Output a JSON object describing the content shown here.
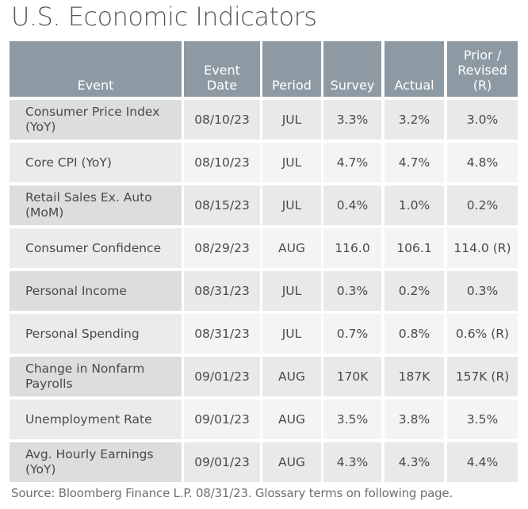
{
  "title": "U.S. Economic Indicators",
  "table": {
    "headers": [
      "Event",
      "Event\nDate",
      "Period",
      "Survey",
      "Actual",
      "Prior /\nRevised\n(R)"
    ],
    "rows": [
      {
        "event": "Consumer Price Index (YoY)",
        "date": "08/10/23",
        "period": "JUL",
        "survey": "3.3%",
        "actual": "3.2%",
        "prior": "3.0%"
      },
      {
        "event": "Core CPI (YoY)",
        "date": "08/10/23",
        "period": "JUL",
        "survey": "4.7%",
        "actual": "4.7%",
        "prior": "4.8%"
      },
      {
        "event": "Retail Sales Ex. Auto (MoM)",
        "date": "08/15/23",
        "period": "JUL",
        "survey": "0.4%",
        "actual": "1.0%",
        "prior": "0.2%"
      },
      {
        "event": "Consumer Confidence",
        "date": "08/29/23",
        "period": "AUG",
        "survey": "116.0",
        "actual": "106.1",
        "prior": "114.0 (R)"
      },
      {
        "event": "Personal Income",
        "date": "08/31/23",
        "period": "JUL",
        "survey": "0.3%",
        "actual": "0.2%",
        "prior": "0.3%"
      },
      {
        "event": "Personal Spending",
        "date": "08/31/23",
        "period": "JUL",
        "survey": "0.7%",
        "actual": "0.8%",
        "prior": "0.6% (R)"
      },
      {
        "event": "Change in Nonfarm Payrolls",
        "date": "09/01/23",
        "period": "AUG",
        "survey": "170K",
        "actual": "187K",
        "prior": "157K (R)"
      },
      {
        "event": "Unemployment Rate",
        "date": "09/01/23",
        "period": "AUG",
        "survey": "3.5%",
        "actual": "3.8%",
        "prior": "3.5%"
      },
      {
        "event": "Avg. Hourly Earnings (YoY)",
        "date": "09/01/23",
        "period": "AUG",
        "survey": "4.3%",
        "actual": "4.3%",
        "prior": "4.4%"
      }
    ]
  },
  "footer": "Source: Bloomberg Finance L.P. 08/31/23. Glossary terms on following page.",
  "colors": {
    "header_bg": "#8e9aa3",
    "header_text": "#ffffff",
    "row_odd_event_bg": "#dcdddf",
    "row_odd_bg": "#e9e9ea",
    "row_even_event_bg": "#ebebec",
    "row_even_bg": "#f4f4f4",
    "text": "#4a4a48"
  }
}
